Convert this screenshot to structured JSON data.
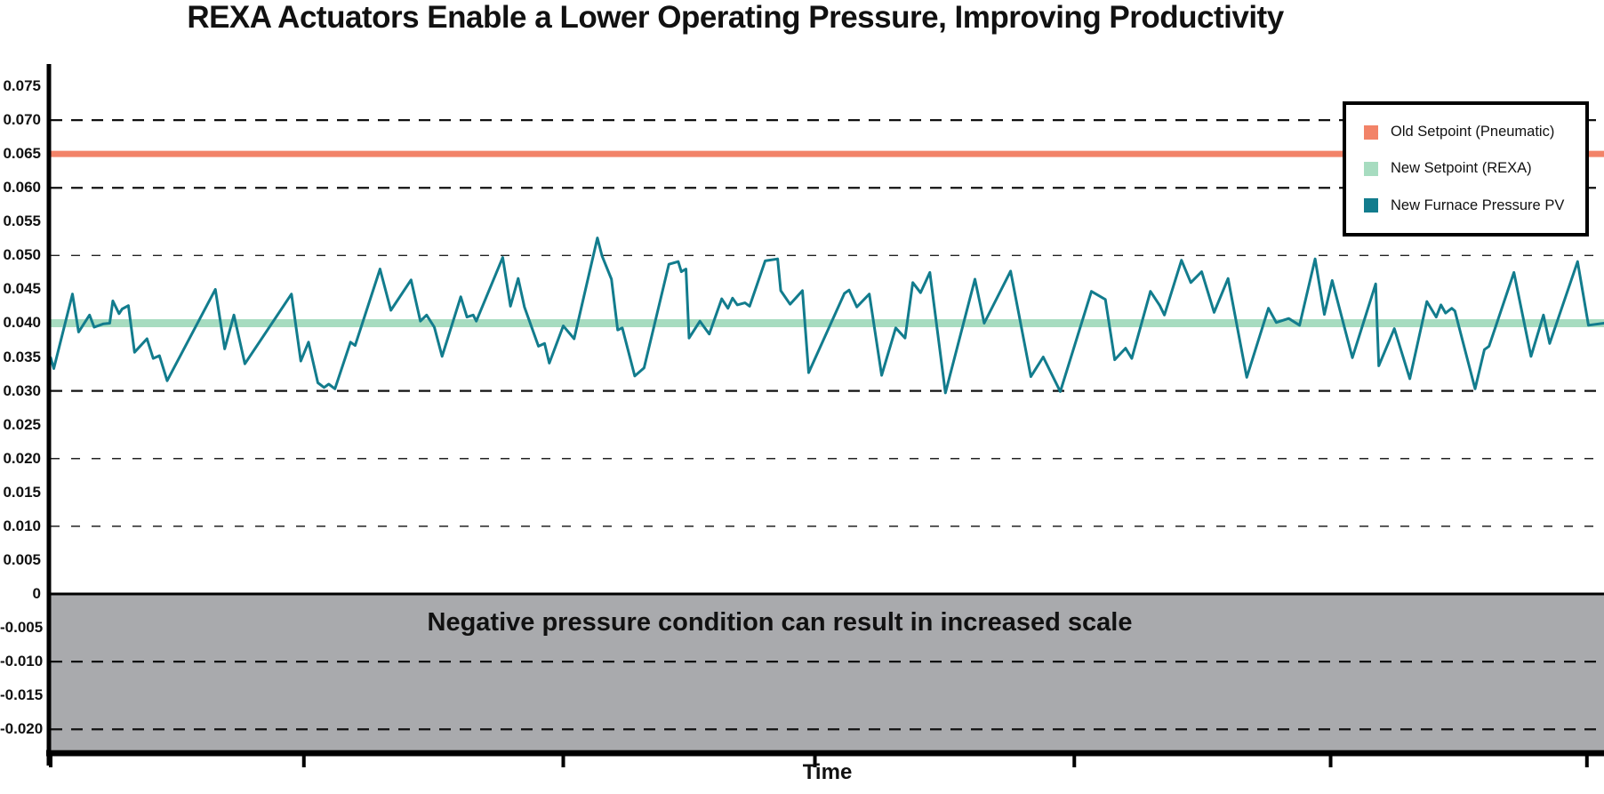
{
  "title": "REXA Actuators Enable a Lower Operating Pressure, Improving Productivity",
  "xlabel": "Time",
  "negative_region_label": "Negative pressure condition can result in increased scale",
  "legend": {
    "items": [
      {
        "label": "Old Setpoint (Pneumatic)",
        "color": "#F28368"
      },
      {
        "label": "New Setpoint (REXA)",
        "color": "#A7DCC0"
      },
      {
        "label": "New Furnace Pressure PV",
        "color": "#127C8D"
      }
    ]
  },
  "chart_data": {
    "type": "line",
    "title": "REXA Actuators Enable a Lower Operating Pressure, Improving Productivity",
    "xlabel": "Time",
    "ylabel": "",
    "ylim": [
      -0.023,
      0.078
    ],
    "grid_on": true,
    "legend_position": "top-right",
    "yticks": [
      "0.075",
      "0.070",
      "0.065",
      "0.060",
      "0.055",
      "0.050",
      "0.045",
      "0.040",
      "0.035",
      "0.030",
      "0.025",
      "0.020",
      "0.015",
      "0.010",
      "0.005",
      "0",
      "-0.005",
      "-0.010",
      "-0.015",
      "-0.020"
    ],
    "xticks_pct": [
      0,
      16.3,
      33.0,
      49.2,
      65.9,
      82.4,
      98.9
    ],
    "xtick_labels": [],
    "grid": {
      "heavy_dashed": [
        0.07,
        0.06,
        0.03,
        -0.01,
        -0.02
      ],
      "light_dashed": [
        0.05,
        0.02,
        0.01
      ]
    },
    "negative_region": {
      "from": 0,
      "to": -0.023,
      "fill": "#A9AAAD",
      "label": "Negative pressure condition can result in increased scale"
    },
    "series": [
      {
        "name": "Old Setpoint (Pneumatic)",
        "type": "hline",
        "value": 0.065,
        "color": "#F28368",
        "width": 7
      },
      {
        "name": "New Setpoint (REXA)",
        "type": "hline",
        "value": 0.04,
        "color": "#A7DCC0",
        "width": 9
      },
      {
        "name": "New Furnace Pressure PV",
        "type": "line",
        "color": "#127C8D",
        "width": 3,
        "points_pct_value": [
          [
            0,
            0.0349
          ],
          [
            0.2,
            0.0333
          ],
          [
            1.4,
            0.0443
          ],
          [
            1.8,
            0.0387
          ],
          [
            2.5,
            0.0412
          ],
          [
            2.8,
            0.0394
          ],
          [
            3.4,
            0.0399
          ],
          [
            3.8,
            0.04
          ],
          [
            4.0,
            0.0433
          ],
          [
            4.4,
            0.0414
          ],
          [
            4.6,
            0.0421
          ],
          [
            5.0,
            0.0426
          ],
          [
            5.4,
            0.0357
          ],
          [
            6.2,
            0.0377
          ],
          [
            6.6,
            0.0348
          ],
          [
            7.0,
            0.0352
          ],
          [
            7.5,
            0.0315
          ],
          [
            10.6,
            0.045
          ],
          [
            11.2,
            0.0362
          ],
          [
            11.8,
            0.0412
          ],
          [
            12.5,
            0.034
          ],
          [
            15.5,
            0.0443
          ],
          [
            16.1,
            0.0344
          ],
          [
            16.6,
            0.0372
          ],
          [
            17.2,
            0.0312
          ],
          [
            17.6,
            0.0305
          ],
          [
            17.9,
            0.031
          ],
          [
            18.3,
            0.0303
          ],
          [
            19.3,
            0.0372
          ],
          [
            19.6,
            0.0367
          ],
          [
            21.2,
            0.048
          ],
          [
            21.9,
            0.0419
          ],
          [
            23.2,
            0.0464
          ],
          [
            23.8,
            0.0403
          ],
          [
            24.2,
            0.0412
          ],
          [
            24.7,
            0.0394
          ],
          [
            25.2,
            0.0351
          ],
          [
            26.4,
            0.0439
          ],
          [
            26.8,
            0.0409
          ],
          [
            27.2,
            0.0412
          ],
          [
            27.4,
            0.0403
          ],
          [
            29.1,
            0.0497
          ],
          [
            29.6,
            0.0425
          ],
          [
            30.1,
            0.0466
          ],
          [
            30.5,
            0.0424
          ],
          [
            31.4,
            0.0366
          ],
          [
            31.8,
            0.037
          ],
          [
            32.1,
            0.0341
          ],
          [
            33.0,
            0.0396
          ],
          [
            33.7,
            0.0377
          ],
          [
            35.2,
            0.0526
          ],
          [
            35.5,
            0.0499
          ],
          [
            36.1,
            0.0465
          ],
          [
            36.5,
            0.039
          ],
          [
            36.8,
            0.0393
          ],
          [
            37.6,
            0.0322
          ],
          [
            38.2,
            0.0334
          ],
          [
            39.8,
            0.0487
          ],
          [
            40.4,
            0.0491
          ],
          [
            40.6,
            0.0476
          ],
          [
            40.9,
            0.048
          ],
          [
            41.1,
            0.0378
          ],
          [
            41.8,
            0.0403
          ],
          [
            42.4,
            0.0384
          ],
          [
            43.2,
            0.0436
          ],
          [
            43.6,
            0.0422
          ],
          [
            43.9,
            0.0437
          ],
          [
            44.2,
            0.0427
          ],
          [
            44.7,
            0.043
          ],
          [
            45.0,
            0.0425
          ],
          [
            46.0,
            0.0492
          ],
          [
            46.8,
            0.0495
          ],
          [
            47.0,
            0.0448
          ],
          [
            47.6,
            0.0428
          ],
          [
            48.4,
            0.0448
          ],
          [
            48.8,
            0.0327
          ],
          [
            51.1,
            0.0444
          ],
          [
            51.4,
            0.0449
          ],
          [
            51.9,
            0.0424
          ],
          [
            52.7,
            0.0443
          ],
          [
            53.5,
            0.0323
          ],
          [
            54.4,
            0.0393
          ],
          [
            55.0,
            0.0378
          ],
          [
            55.5,
            0.046
          ],
          [
            56.0,
            0.0445
          ],
          [
            56.6,
            0.0475
          ],
          [
            57.6,
            0.0297
          ],
          [
            59.5,
            0.0465
          ],
          [
            60.1,
            0.04
          ],
          [
            61.8,
            0.0477
          ],
          [
            63.1,
            0.0321
          ],
          [
            63.9,
            0.035
          ],
          [
            65.0,
            0.0299
          ],
          [
            67.0,
            0.0447
          ],
          [
            67.9,
            0.0435
          ],
          [
            68.5,
            0.0346
          ],
          [
            69.2,
            0.0363
          ],
          [
            69.6,
            0.0348
          ],
          [
            70.8,
            0.0447
          ],
          [
            71.4,
            0.0426
          ],
          [
            71.7,
            0.0412
          ],
          [
            72.8,
            0.0493
          ],
          [
            73.4,
            0.046
          ],
          [
            74.1,
            0.0476
          ],
          [
            74.9,
            0.0416
          ],
          [
            75.8,
            0.0466
          ],
          [
            77.0,
            0.032
          ],
          [
            78.4,
            0.0422
          ],
          [
            78.9,
            0.0401
          ],
          [
            79.3,
            0.0404
          ],
          [
            79.7,
            0.0407
          ],
          [
            80.4,
            0.0397
          ],
          [
            81.4,
            0.0495
          ],
          [
            82.0,
            0.0413
          ],
          [
            82.5,
            0.0463
          ],
          [
            83.8,
            0.0349
          ],
          [
            85.3,
            0.0458
          ],
          [
            85.5,
            0.0337
          ],
          [
            86.5,
            0.0392
          ],
          [
            87.5,
            0.0318
          ],
          [
            88.6,
            0.0432
          ],
          [
            89.2,
            0.0409
          ],
          [
            89.5,
            0.0427
          ],
          [
            89.8,
            0.0415
          ],
          [
            90.2,
            0.0422
          ],
          [
            90.4,
            0.0418
          ],
          [
            91.7,
            0.0303
          ],
          [
            92.3,
            0.0361
          ],
          [
            92.6,
            0.0366
          ],
          [
            94.2,
            0.0475
          ],
          [
            95.3,
            0.0351
          ],
          [
            96.1,
            0.0412
          ],
          [
            96.5,
            0.037
          ],
          [
            98.3,
            0.0491
          ],
          [
            99.0,
            0.0397
          ],
          [
            100,
            0.04
          ]
        ]
      }
    ]
  }
}
